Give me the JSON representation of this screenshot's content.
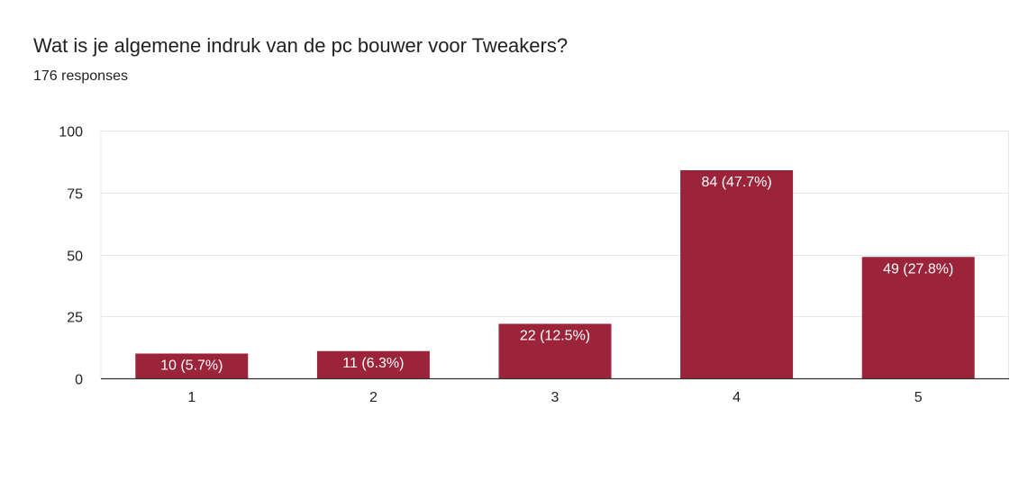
{
  "header": {
    "title": "Wat is je algemene indruk van de pc bouwer voor Tweakers?",
    "subtitle": "176 responses"
  },
  "colors": {
    "bar": "#9b233a",
    "grid": "#e8e8e8",
    "axis": "#333333",
    "label_text": "#ffffff",
    "tick_text": "#222222"
  },
  "chart_data": {
    "type": "bar",
    "title": "Wat is je algemene indruk van de pc bouwer voor Tweakers?",
    "subtitle": "176 responses",
    "categories": [
      "1",
      "2",
      "3",
      "4",
      "5"
    ],
    "values": [
      10,
      11,
      22,
      84,
      49
    ],
    "data_labels": [
      "10 (5.7%)",
      "11 (6.3%)",
      "22 (12.5%)",
      "84 (47.7%)",
      "49 (27.8%)"
    ],
    "yticks": [
      0,
      25,
      50,
      75,
      100
    ],
    "ylim": [
      0,
      100
    ],
    "xlabel": "",
    "ylabel": "",
    "grid": true,
    "legend": "none"
  }
}
